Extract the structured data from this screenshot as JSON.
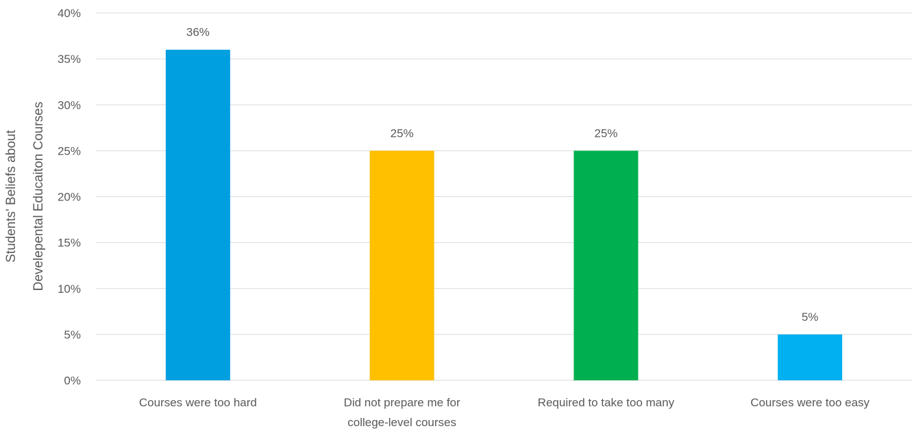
{
  "chart_data": {
    "type": "bar",
    "title": "",
    "xlabel": "",
    "ylabel_lines": [
      "Students' Beliefs about",
      "Develepental Educaiton Courses"
    ],
    "categories": [
      [
        "Courses were too hard"
      ],
      [
        "Did not prepare me for",
        "college-level courses"
      ],
      [
        "Required to take too many"
      ],
      [
        "Courses were too easy"
      ]
    ],
    "values": [
      36,
      25,
      25,
      5
    ],
    "value_labels": [
      "36%",
      "25%",
      "25%",
      "5%"
    ],
    "colors": [
      "#009FE0",
      "#FFC000",
      "#00B050",
      "#00B0F0"
    ],
    "ylim": [
      0,
      40
    ],
    "yticks": [
      0,
      5,
      10,
      15,
      20,
      25,
      30,
      35,
      40
    ],
    "ytick_labels": [
      "0%",
      "5%",
      "10%",
      "15%",
      "20%",
      "25%",
      "30%",
      "35%",
      "40%"
    ],
    "grid": true,
    "legend": "none",
    "gridline_color": "#D9D9D9"
  }
}
